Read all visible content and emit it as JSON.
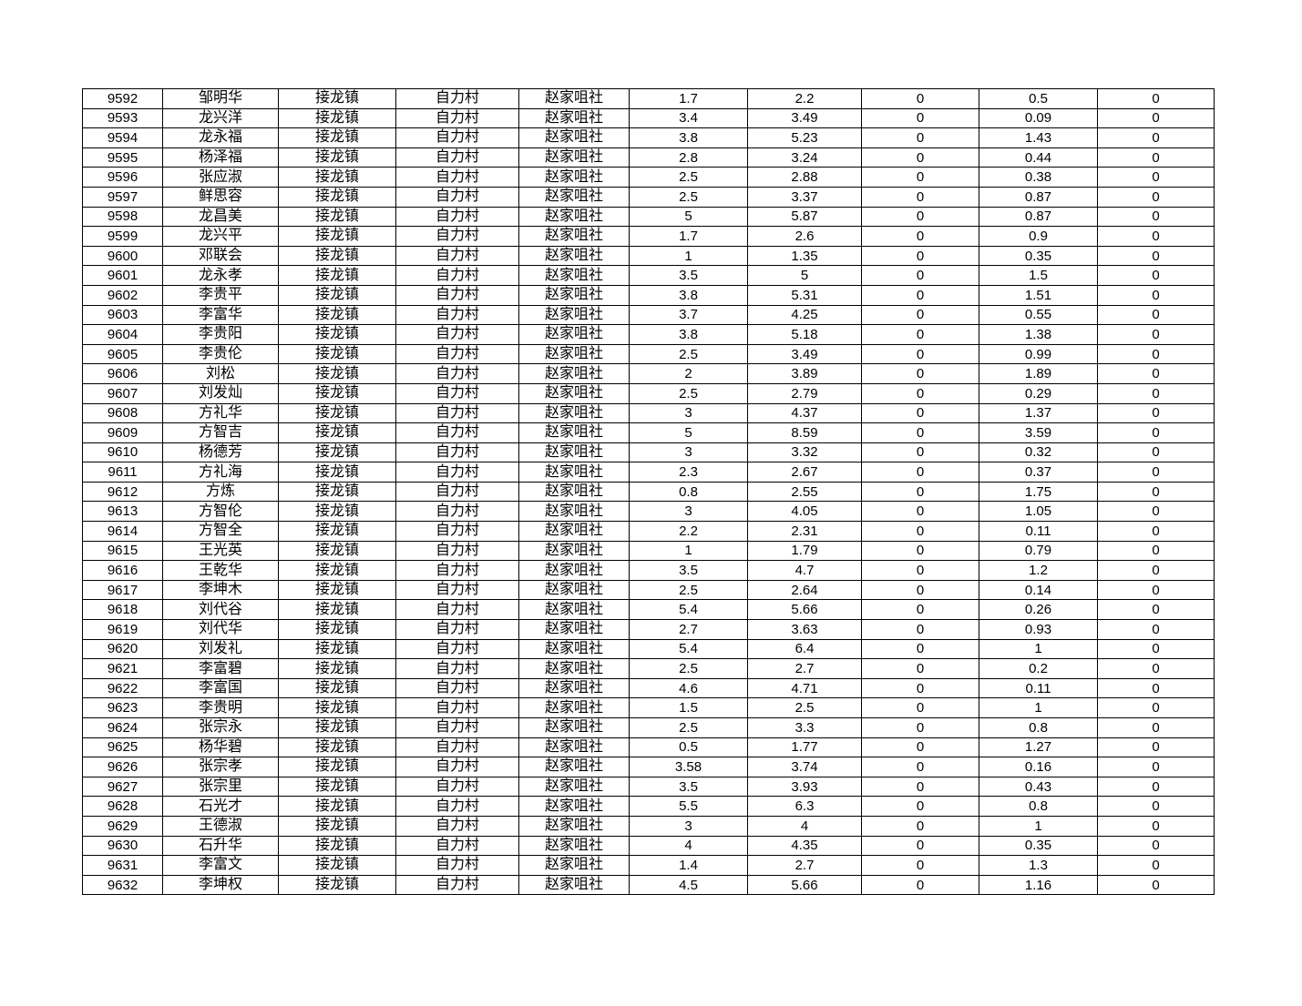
{
  "page": {
    "background_color": "#ffffff",
    "text_color": "#000000",
    "border_color": "#000000"
  },
  "table": {
    "rows": [
      [
        "9592",
        "邹明华",
        "接龙镇",
        "自力村",
        "赵家咀社",
        "1.7",
        "2.2",
        "0",
        "0.5",
        "0"
      ],
      [
        "9593",
        "龙兴洋",
        "接龙镇",
        "自力村",
        "赵家咀社",
        "3.4",
        "3.49",
        "0",
        "0.09",
        "0"
      ],
      [
        "9594",
        "龙永福",
        "接龙镇",
        "自力村",
        "赵家咀社",
        "3.8",
        "5.23",
        "0",
        "1.43",
        "0"
      ],
      [
        "9595",
        "杨泽福",
        "接龙镇",
        "自力村",
        "赵家咀社",
        "2.8",
        "3.24",
        "0",
        "0.44",
        "0"
      ],
      [
        "9596",
        "张应淑",
        "接龙镇",
        "自力村",
        "赵家咀社",
        "2.5",
        "2.88",
        "0",
        "0.38",
        "0"
      ],
      [
        "9597",
        "鲜思容",
        "接龙镇",
        "自力村",
        "赵家咀社",
        "2.5",
        "3.37",
        "0",
        "0.87",
        "0"
      ],
      [
        "9598",
        "龙昌美",
        "接龙镇",
        "自力村",
        "赵家咀社",
        "5",
        "5.87",
        "0",
        "0.87",
        "0"
      ],
      [
        "9599",
        "龙兴平",
        "接龙镇",
        "自力村",
        "赵家咀社",
        "1.7",
        "2.6",
        "0",
        "0.9",
        "0"
      ],
      [
        "9600",
        "邓联会",
        "接龙镇",
        "自力村",
        "赵家咀社",
        "1",
        "1.35",
        "0",
        "0.35",
        "0"
      ],
      [
        "9601",
        "龙永孝",
        "接龙镇",
        "自力村",
        "赵家咀社",
        "3.5",
        "5",
        "0",
        "1.5",
        "0"
      ],
      [
        "9602",
        "李贵平",
        "接龙镇",
        "自力村",
        "赵家咀社",
        "3.8",
        "5.31",
        "0",
        "1.51",
        "0"
      ],
      [
        "9603",
        "李富华",
        "接龙镇",
        "自力村",
        "赵家咀社",
        "3.7",
        "4.25",
        "0",
        "0.55",
        "0"
      ],
      [
        "9604",
        "李贵阳",
        "接龙镇",
        "自力村",
        "赵家咀社",
        "3.8",
        "5.18",
        "0",
        "1.38",
        "0"
      ],
      [
        "9605",
        "李贵伦",
        "接龙镇",
        "自力村",
        "赵家咀社",
        "2.5",
        "3.49",
        "0",
        "0.99",
        "0"
      ],
      [
        "9606",
        "刘松",
        "接龙镇",
        "自力村",
        "赵家咀社",
        "2",
        "3.89",
        "0",
        "1.89",
        "0"
      ],
      [
        "9607",
        "刘发灿",
        "接龙镇",
        "自力村",
        "赵家咀社",
        "2.5",
        "2.79",
        "0",
        "0.29",
        "0"
      ],
      [
        "9608",
        "方礼华",
        "接龙镇",
        "自力村",
        "赵家咀社",
        "3",
        "4.37",
        "0",
        "1.37",
        "0"
      ],
      [
        "9609",
        "方智吉",
        "接龙镇",
        "自力村",
        "赵家咀社",
        "5",
        "8.59",
        "0",
        "3.59",
        "0"
      ],
      [
        "9610",
        "杨德芳",
        "接龙镇",
        "自力村",
        "赵家咀社",
        "3",
        "3.32",
        "0",
        "0.32",
        "0"
      ],
      [
        "9611",
        "方礼海",
        "接龙镇",
        "自力村",
        "赵家咀社",
        "2.3",
        "2.67",
        "0",
        "0.37",
        "0"
      ],
      [
        "9612",
        "方炼",
        "接龙镇",
        "自力村",
        "赵家咀社",
        "0.8",
        "2.55",
        "0",
        "1.75",
        "0"
      ],
      [
        "9613",
        "方智伦",
        "接龙镇",
        "自力村",
        "赵家咀社",
        "3",
        "4.05",
        "0",
        "1.05",
        "0"
      ],
      [
        "9614",
        "方智全",
        "接龙镇",
        "自力村",
        "赵家咀社",
        "2.2",
        "2.31",
        "0",
        "0.11",
        "0"
      ],
      [
        "9615",
        "王光英",
        "接龙镇",
        "自力村",
        "赵家咀社",
        "1",
        "1.79",
        "0",
        "0.79",
        "0"
      ],
      [
        "9616",
        "王乾华",
        "接龙镇",
        "自力村",
        "赵家咀社",
        "3.5",
        "4.7",
        "0",
        "1.2",
        "0"
      ],
      [
        "9617",
        "李坤木",
        "接龙镇",
        "自力村",
        "赵家咀社",
        "2.5",
        "2.64",
        "0",
        "0.14",
        "0"
      ],
      [
        "9618",
        "刘代谷",
        "接龙镇",
        "自力村",
        "赵家咀社",
        "5.4",
        "5.66",
        "0",
        "0.26",
        "0"
      ],
      [
        "9619",
        "刘代华",
        "接龙镇",
        "自力村",
        "赵家咀社",
        "2.7",
        "3.63",
        "0",
        "0.93",
        "0"
      ],
      [
        "9620",
        "刘发礼",
        "接龙镇",
        "自力村",
        "赵家咀社",
        "5.4",
        "6.4",
        "0",
        "1",
        "0"
      ],
      [
        "9621",
        "李富碧",
        "接龙镇",
        "自力村",
        "赵家咀社",
        "2.5",
        "2.7",
        "0",
        "0.2",
        "0"
      ],
      [
        "9622",
        "李富国",
        "接龙镇",
        "自力村",
        "赵家咀社",
        "4.6",
        "4.71",
        "0",
        "0.11",
        "0"
      ],
      [
        "9623",
        "李贵明",
        "接龙镇",
        "自力村",
        "赵家咀社",
        "1.5",
        "2.5",
        "0",
        "1",
        "0"
      ],
      [
        "9624",
        "张宗永",
        "接龙镇",
        "自力村",
        "赵家咀社",
        "2.5",
        "3.3",
        "0",
        "0.8",
        "0"
      ],
      [
        "9625",
        "杨华碧",
        "接龙镇",
        "自力村",
        "赵家咀社",
        "0.5",
        "1.77",
        "0",
        "1.27",
        "0"
      ],
      [
        "9626",
        "张宗孝",
        "接龙镇",
        "自力村",
        "赵家咀社",
        "3.58",
        "3.74",
        "0",
        "0.16",
        "0"
      ],
      [
        "9627",
        "张宗里",
        "接龙镇",
        "自力村",
        "赵家咀社",
        "3.5",
        "3.93",
        "0",
        "0.43",
        "0"
      ],
      [
        "9628",
        "石光才",
        "接龙镇",
        "自力村",
        "赵家咀社",
        "5.5",
        "6.3",
        "0",
        "0.8",
        "0"
      ],
      [
        "9629",
        "王德淑",
        "接龙镇",
        "自力村",
        "赵家咀社",
        "3",
        "4",
        "0",
        "1",
        "0"
      ],
      [
        "9630",
        "石升华",
        "接龙镇",
        "自力村",
        "赵家咀社",
        "4",
        "4.35",
        "0",
        "0.35",
        "0"
      ],
      [
        "9631",
        "李富文",
        "接龙镇",
        "自力村",
        "赵家咀社",
        "1.4",
        "2.7",
        "0",
        "1.3",
        "0"
      ],
      [
        "9632",
        "李坤权",
        "接龙镇",
        "自力村",
        "赵家咀社",
        "4.5",
        "5.66",
        "0",
        "1.16",
        "0"
      ]
    ]
  }
}
